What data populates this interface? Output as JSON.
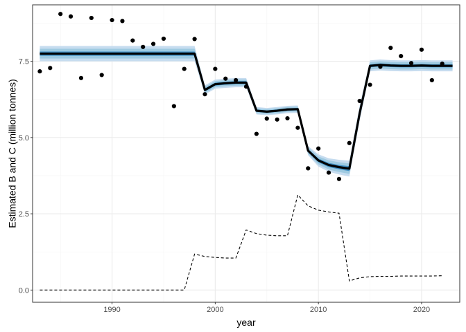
{
  "chart_data": {
    "type": "line",
    "title": "",
    "xlabel": "year",
    "ylabel": "Estimated B and C (million tonnes)",
    "xlim": [
      1982.3,
      2023.7
    ],
    "ylim": [
      -0.4,
      9.35
    ],
    "x_ticks": [
      1990,
      2000,
      2010,
      2020
    ],
    "x_tick_labels": [
      "1990",
      "2000",
      "2010",
      "2020"
    ],
    "y_ticks": [
      0.0,
      2.5,
      5.0,
      7.5
    ],
    "y_tick_labels": [
      "0.0",
      "2.5",
      "5.0",
      "7.5"
    ],
    "grid": true,
    "legend": "none",
    "colors": {
      "estimate_line": "#000000",
      "band_outer": "#c6dcef",
      "band_mid": "#9ecae1",
      "band_inner": "#4292c6",
      "points": "#000000",
      "catch_line": "#000000",
      "grid_major": "#ebebeb",
      "grid_minor": "#f5f5f5",
      "panel_border": "#333333"
    },
    "series": [
      {
        "kind": "estimate",
        "x": [
          1983,
          1998,
          1999,
          2000,
          2001,
          2002,
          2003,
          2004,
          2005,
          2006,
          2007,
          2008,
          2009,
          2010,
          2011,
          2012,
          2013,
          2014,
          2015,
          2016,
          2017,
          2018,
          2019,
          2020,
          2021,
          2022,
          2023
        ],
        "y": [
          7.75,
          7.75,
          6.56,
          6.75,
          6.78,
          6.8,
          6.8,
          5.88,
          5.85,
          5.88,
          5.92,
          5.93,
          4.57,
          4.25,
          4.1,
          4.03,
          3.98,
          5.8,
          7.35,
          7.38,
          7.36,
          7.35,
          7.35,
          7.36,
          7.35,
          7.35,
          7.35
        ],
        "ci_outer": [
          0.25,
          0.25,
          0.15,
          0.15,
          0.15,
          0.15,
          0.15,
          0.12,
          0.12,
          0.12,
          0.12,
          0.12,
          0.15,
          0.2,
          0.22,
          0.24,
          0.26,
          0.25,
          0.18,
          0.18,
          0.18,
          0.18,
          0.18,
          0.18,
          0.18,
          0.18,
          0.18
        ],
        "ci_mid": [
          0.16,
          0.16,
          0.1,
          0.1,
          0.1,
          0.1,
          0.1,
          0.08,
          0.08,
          0.08,
          0.08,
          0.08,
          0.1,
          0.13,
          0.15,
          0.16,
          0.17,
          0.16,
          0.12,
          0.12,
          0.12,
          0.12,
          0.12,
          0.12,
          0.12,
          0.12,
          0.12
        ],
        "ci_inner": [
          0.07,
          0.07,
          0.05,
          0.05,
          0.05,
          0.05,
          0.05,
          0.04,
          0.04,
          0.04,
          0.04,
          0.04,
          0.05,
          0.06,
          0.07,
          0.07,
          0.08,
          0.07,
          0.05,
          0.05,
          0.05,
          0.05,
          0.05,
          0.05,
          0.05,
          0.05,
          0.05
        ]
      },
      {
        "kind": "observed",
        "x": [
          1983,
          1984,
          1985,
          1986,
          1987,
          1988,
          1989,
          1990,
          1991,
          1992,
          1993,
          1994,
          1995,
          1996,
          1997,
          1998,
          1999,
          2000,
          2001,
          2002,
          2003,
          2004,
          2005,
          2006,
          2007,
          2008,
          2009,
          2010,
          2011,
          2012,
          2013,
          2014,
          2015,
          2016,
          2017,
          2018,
          2019,
          2020,
          2021,
          2022
        ],
        "y": [
          7.17,
          7.28,
          9.05,
          8.97,
          6.95,
          8.92,
          7.05,
          8.85,
          8.82,
          8.18,
          7.97,
          8.07,
          8.24,
          6.03,
          7.25,
          8.23,
          6.42,
          7.25,
          6.93,
          6.88,
          6.67,
          5.12,
          5.62,
          5.59,
          5.63,
          5.32,
          3.99,
          4.64,
          3.85,
          3.64,
          4.82,
          6.2,
          6.73,
          7.32,
          7.94,
          7.67,
          7.44,
          7.88,
          6.88,
          7.42
        ]
      },
      {
        "kind": "catch",
        "x": [
          1983,
          1997,
          1998,
          1999,
          2000,
          2001,
          2002,
          2003,
          2004,
          2005,
          2006,
          2007,
          2008,
          2009,
          2010,
          2011,
          2012,
          2013,
          2014,
          2015,
          2016,
          2017,
          2018,
          2019,
          2020,
          2021,
          2022
        ],
        "y": [
          0.0,
          0.0,
          1.18,
          1.1,
          1.07,
          1.05,
          1.05,
          1.97,
          1.85,
          1.8,
          1.78,
          1.78,
          3.12,
          2.76,
          2.62,
          2.56,
          2.52,
          0.3,
          0.4,
          0.44,
          0.45,
          0.45,
          0.46,
          0.46,
          0.46,
          0.46,
          0.47
        ]
      }
    ]
  }
}
